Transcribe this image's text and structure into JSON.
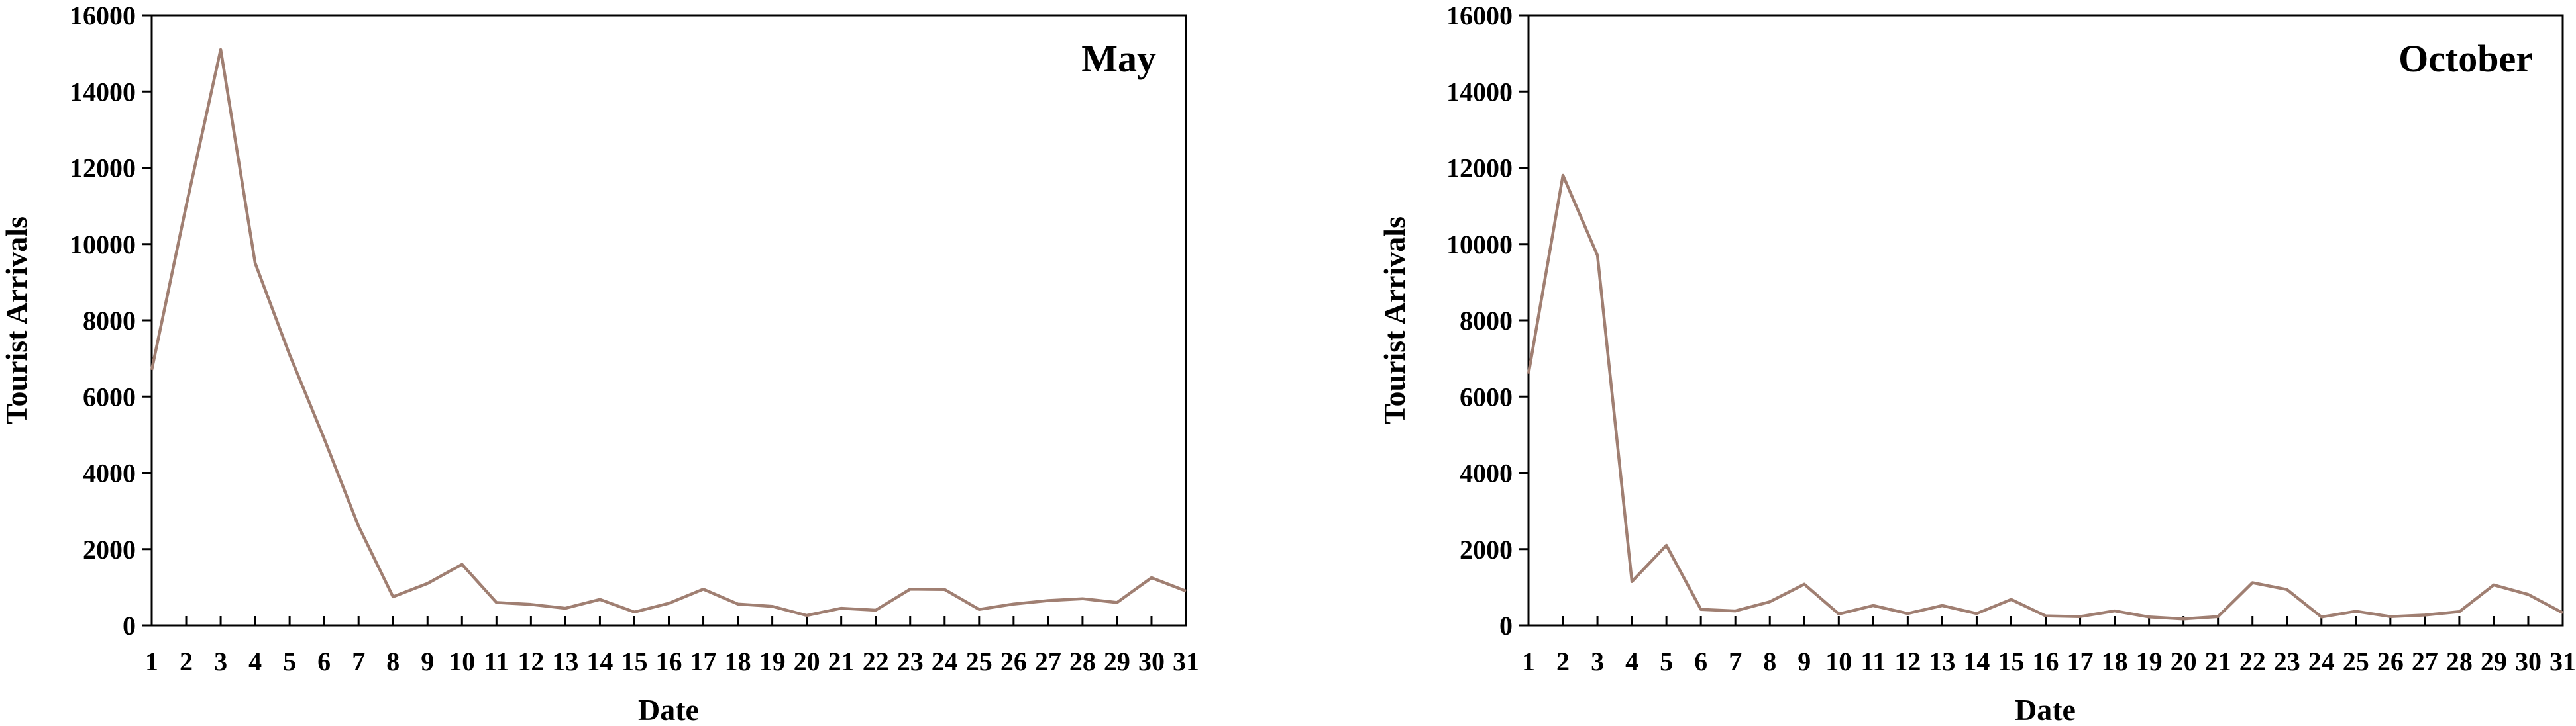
{
  "chart_data": [
    {
      "type": "line",
      "title": "May",
      "xlabel": "Date",
      "ylabel": "Tourist Arrivals",
      "ylim": [
        0,
        16000
      ],
      "yticks": [
        0,
        2000,
        4000,
        6000,
        8000,
        10000,
        12000,
        14000,
        16000
      ],
      "x": [
        1,
        2,
        3,
        4,
        5,
        6,
        7,
        8,
        9,
        10,
        11,
        12,
        13,
        14,
        15,
        16,
        17,
        18,
        19,
        20,
        21,
        22,
        23,
        24,
        25,
        26,
        27,
        28,
        29,
        30,
        31
      ],
      "series": [
        {
          "color": "#A07F72",
          "values": [
            6700,
            11000,
            15100,
            9500,
            7100,
            4900,
            2600,
            750,
            1100,
            1600,
            600,
            550,
            450,
            680,
            350,
            580,
            950,
            560,
            500,
            260,
            450,
            400,
            950,
            940,
            420,
            560,
            650,
            700,
            600,
            1250,
            900
          ]
        }
      ],
      "grid": false,
      "legend": "none"
    },
    {
      "type": "line",
      "title": "October",
      "xlabel": "Date",
      "ylabel": "Tourist Arrivals",
      "ylim": [
        0,
        16000
      ],
      "yticks": [
        0,
        2000,
        4000,
        6000,
        8000,
        10000,
        12000,
        14000,
        16000
      ],
      "x": [
        1,
        2,
        3,
        4,
        5,
        6,
        7,
        8,
        9,
        10,
        11,
        12,
        13,
        14,
        15,
        16,
        17,
        18,
        19,
        20,
        21,
        22,
        23,
        24,
        25,
        26,
        27,
        28,
        29,
        30,
        31
      ],
      "series": [
        {
          "color": "#A07F72",
          "values": [
            6600,
            11800,
            9700,
            1150,
            2100,
            420,
            380,
            620,
            1080,
            300,
            520,
            310,
            520,
            310,
            680,
            250,
            230,
            380,
            220,
            170,
            230,
            1120,
            940,
            220,
            370,
            230,
            270,
            360,
            1060,
            810,
            330
          ]
        }
      ],
      "grid": false,
      "legend": "none"
    }
  ]
}
